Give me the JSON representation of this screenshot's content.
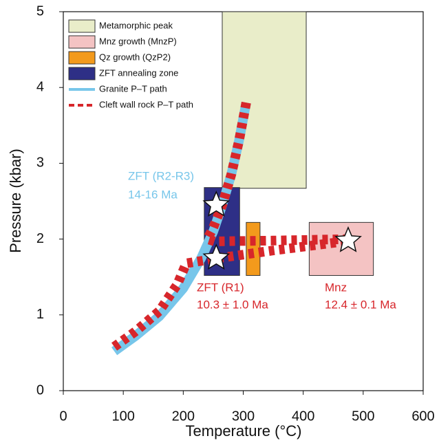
{
  "chart_data": {
    "type": "line",
    "xlabel": "Temperature (°C)",
    "ylabel": "Pressure (kbar)",
    "xlim": [
      0,
      600
    ],
    "ylim": [
      0,
      5
    ],
    "xticks": [
      0,
      100,
      200,
      300,
      400,
      500,
      600
    ],
    "yticks": [
      0,
      1,
      2,
      3,
      4,
      5
    ],
    "regions": [
      {
        "name": "Metamorphic peak",
        "color": "#e9edc9",
        "xlim": [
          265,
          405
        ],
        "ylim": [
          2.67,
          5
        ]
      },
      {
        "name": "Mnz growth (MnzP)",
        "color": "#f4c3c3",
        "xlim": [
          410,
          517
        ],
        "ylim": [
          1.52,
          2.22
        ]
      },
      {
        "name": "Qz growth (QzP2)",
        "color": "#f39a1c",
        "xlim": [
          305,
          328
        ],
        "ylim": [
          1.52,
          2.22
        ]
      },
      {
        "name": "ZFT annealing zone",
        "color": "#2e2f86",
        "xlim": [
          235,
          294
        ],
        "ylim": [
          1.52,
          2.68
        ]
      }
    ],
    "series": [
      {
        "name": "Granite P–T path",
        "color": "#77c6ea",
        "x": [
          85,
          120,
          160,
          200,
          230,
          250,
          265,
          280,
          293,
          305
        ],
        "values": [
          0.52,
          0.72,
          0.98,
          1.35,
          1.75,
          2.1,
          2.45,
          2.85,
          3.3,
          3.8
        ]
      },
      {
        "name": "Cleft wall rock P–T path",
        "color": "#d7262b",
        "x": [
          85,
          120,
          160,
          190,
          205,
          260,
          350,
          470,
          null,
          305,
          293,
          280,
          265,
          250,
          240,
          252,
          350,
          480
        ],
        "values": [
          0.58,
          0.78,
          1.05,
          1.4,
          1.68,
          1.75,
          1.85,
          1.97,
          null,
          3.8,
          3.3,
          2.85,
          2.45,
          2.15,
          2.0,
          1.97,
          1.98,
          2.0
        ]
      }
    ],
    "markers": {
      "x": [
        255,
        255,
        475
      ],
      "y": [
        2.45,
        1.75,
        1.98
      ]
    },
    "annotations": [
      {
        "text": "ZFT (R2-R3)",
        "color": "#77c6ea"
      },
      {
        "text": "14-16 Ma",
        "color": "#77c6ea"
      },
      {
        "text": "ZFT (R1)",
        "color": "#d7262b"
      },
      {
        "text": "10.3 ± 1.0 Ma",
        "color": "#d7262b"
      },
      {
        "text": "Mnz",
        "color": "#d7262b"
      },
      {
        "text": "12.4 ± 0.1 Ma",
        "color": "#d7262b"
      }
    ]
  }
}
